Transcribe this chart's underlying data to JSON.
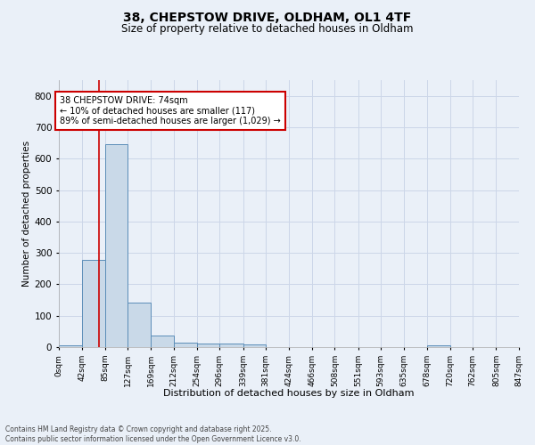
{
  "title_line1": "38, CHEPSTOW DRIVE, OLDHAM, OL1 4TF",
  "title_line2": "Size of property relative to detached houses in Oldham",
  "xlabel": "Distribution of detached houses by size in Oldham",
  "ylabel": "Number of detached properties",
  "bin_edges": [
    0,
    42,
    85,
    127,
    169,
    212,
    254,
    296,
    339,
    381,
    424,
    466,
    508,
    551,
    593,
    635,
    678,
    720,
    762,
    805,
    847
  ],
  "bin_labels": [
    "0sqm",
    "42sqm",
    "85sqm",
    "127sqm",
    "169sqm",
    "212sqm",
    "254sqm",
    "296sqm",
    "339sqm",
    "381sqm",
    "424sqm",
    "466sqm",
    "508sqm",
    "551sqm",
    "593sqm",
    "635sqm",
    "678sqm",
    "720sqm",
    "762sqm",
    "805sqm",
    "847sqm"
  ],
  "bar_heights": [
    7,
    278,
    645,
    141,
    36,
    15,
    11,
    11,
    8,
    0,
    0,
    0,
    0,
    0,
    0,
    0,
    5,
    0,
    0,
    0
  ],
  "bar_color": "#c9d9e8",
  "bar_edge_color": "#5b8db8",
  "property_value": 74,
  "red_line_color": "#cc0000",
  "annotation_text": "38 CHEPSTOW DRIVE: 74sqm\n← 10% of detached houses are smaller (117)\n89% of semi-detached houses are larger (1,029) →",
  "annotation_box_color": "#ffffff",
  "annotation_box_edge": "#cc0000",
  "ylim": [
    0,
    850
  ],
  "yticks": [
    0,
    100,
    200,
    300,
    400,
    500,
    600,
    700,
    800
  ],
  "grid_color": "#ccd6e8",
  "footer_text": "Contains HM Land Registry data © Crown copyright and database right 2025.\nContains public sector information licensed under the Open Government Licence v3.0.",
  "bg_color": "#eaf0f8"
}
